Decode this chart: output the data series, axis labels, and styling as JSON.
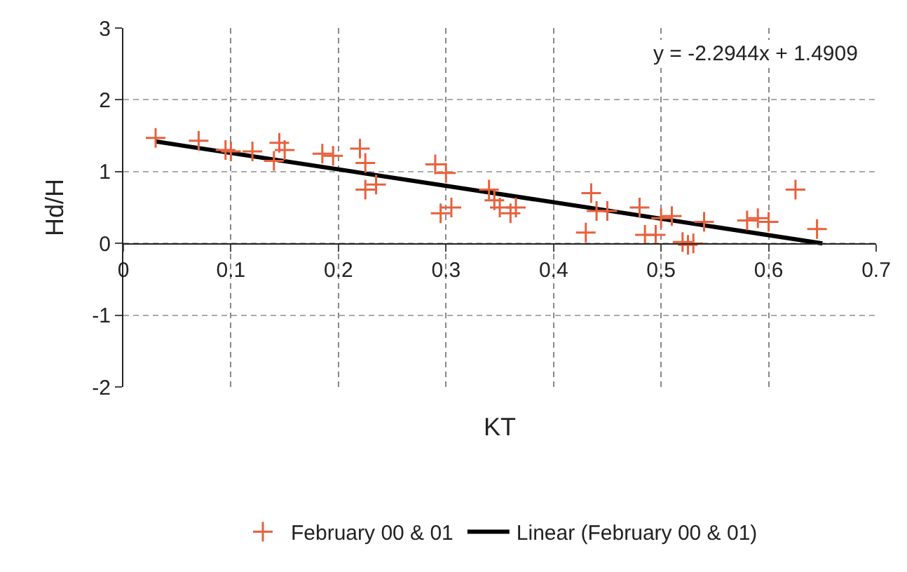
{
  "chart_data": {
    "type": "scatter",
    "xlabel": "KT",
    "ylabel": "Hd/H",
    "xlim": [
      0,
      0.7
    ],
    "xticks": [
      0,
      0.1,
      0.2,
      0.3,
      0.4,
      0.5,
      0.6,
      0.7
    ],
    "ylim": [
      -2,
      3
    ],
    "yticks": [
      -2,
      -1,
      0,
      1,
      2,
      3
    ],
    "grid": true,
    "legend": "bottom",
    "marker": "cross",
    "annotations": [
      "y = -2.2944x + 1.4909"
    ],
    "series": [
      {
        "name": "February 00 & 01",
        "color": "#e8603c",
        "x": [
          0.03,
          0.07,
          0.095,
          0.1,
          0.12,
          0.14,
          0.145,
          0.15,
          0.185,
          0.195,
          0.22,
          0.225,
          0.225,
          0.235,
          0.29,
          0.295,
          0.3,
          0.305,
          0.34,
          0.345,
          0.35,
          0.36,
          0.365,
          0.43,
          0.435,
          0.44,
          0.45,
          0.48,
          0.485,
          0.495,
          0.5,
          0.51,
          0.52,
          0.525,
          0.53,
          0.54,
          0.58,
          0.59,
          0.6,
          0.625,
          0.645
        ],
        "values": [
          1.47,
          1.43,
          1.3,
          1.28,
          1.28,
          1.15,
          1.4,
          1.3,
          1.25,
          1.22,
          1.32,
          1.12,
          0.75,
          0.82,
          1.1,
          0.42,
          0.98,
          0.5,
          0.75,
          0.6,
          0.5,
          0.42,
          0.5,
          0.15,
          0.7,
          0.45,
          0.45,
          0.5,
          0.12,
          0.12,
          0.35,
          0.38,
          0.02,
          -0.02,
          0.0,
          0.3,
          0.32,
          0.35,
          0.3,
          0.75,
          0.2
        ]
      },
      {
        "name": "Linear (February 00 & 01)",
        "color": "#000000",
        "type": "line",
        "marker": "none",
        "x": [
          0.03,
          0.65
        ],
        "values": [
          1.42,
          0.0
        ]
      }
    ]
  }
}
